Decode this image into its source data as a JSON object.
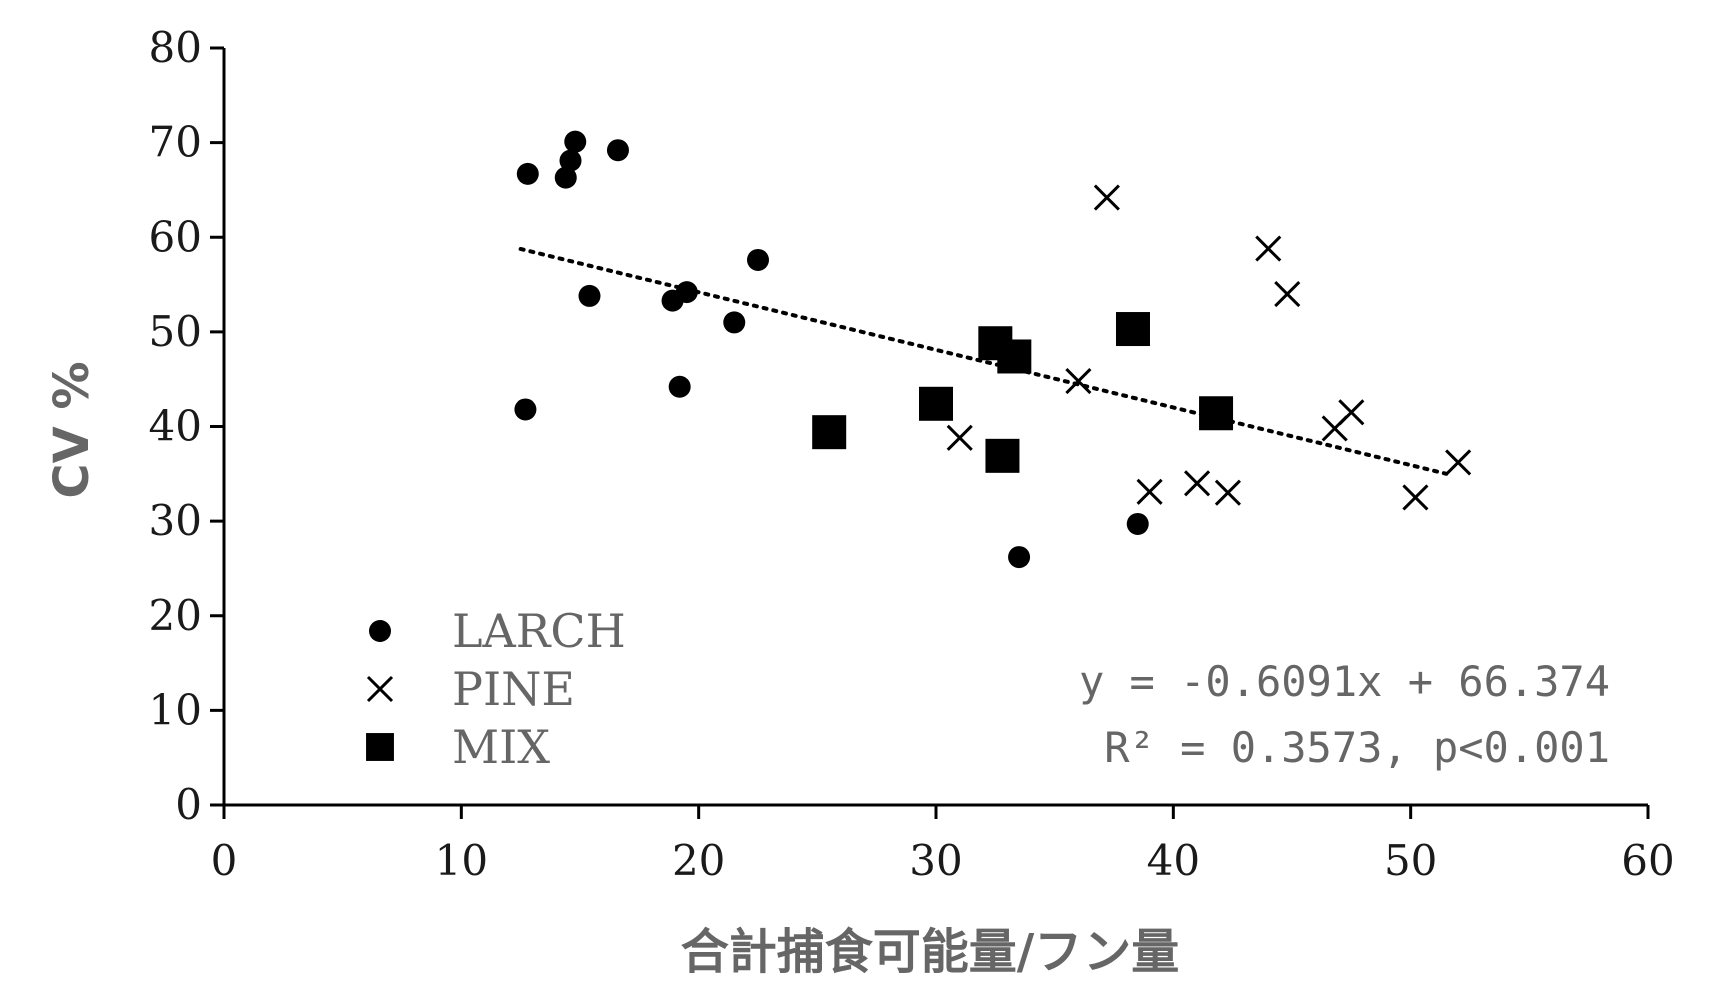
{
  "chart_data": {
    "type": "scatter",
    "xlabel": "合計捕食可能量/フン量",
    "ylabel": "CV %",
    "xlim": [
      0,
      60
    ],
    "ylim": [
      0,
      80
    ],
    "x_ticks": [
      "0",
      "10",
      "20",
      "30",
      "40",
      "50",
      "60"
    ],
    "y_ticks": [
      "0",
      "10",
      "20",
      "30",
      "40",
      "50",
      "60",
      "70",
      "80"
    ],
    "grid": false,
    "legend_position": "bottom-left",
    "series": [
      {
        "name": "LARCH",
        "marker": "circle",
        "color": "#000000",
        "points": [
          [
            12.7,
            41.8
          ],
          [
            12.8,
            66.7
          ],
          [
            14.4,
            66.3
          ],
          [
            14.6,
            68.1
          ],
          [
            14.8,
            70.1
          ],
          [
            15.4,
            53.8
          ],
          [
            16.6,
            69.2
          ],
          [
            18.9,
            53.3
          ],
          [
            19.2,
            44.2
          ],
          [
            19.5,
            54.2
          ],
          [
            21.5,
            51.0
          ],
          [
            22.5,
            57.6
          ],
          [
            33.5,
            26.2
          ],
          [
            38.5,
            29.7
          ]
        ]
      },
      {
        "name": "PINE",
        "marker": "x",
        "color": "#000000",
        "points": [
          [
            31.0,
            38.8
          ],
          [
            36.0,
            44.8
          ],
          [
            37.2,
            64.2
          ],
          [
            39.0,
            33.1
          ],
          [
            41.0,
            34.0
          ],
          [
            42.3,
            33.0
          ],
          [
            44.0,
            58.8
          ],
          [
            44.8,
            54.0
          ],
          [
            46.8,
            39.8
          ],
          [
            47.5,
            41.5
          ],
          [
            50.2,
            32.5
          ],
          [
            52.0,
            36.2
          ]
        ]
      },
      {
        "name": "MIX",
        "marker": "square",
        "color": "#000000",
        "points": [
          [
            25.5,
            39.4
          ],
          [
            30.0,
            42.4
          ],
          [
            32.5,
            48.8
          ],
          [
            32.8,
            36.9
          ],
          [
            33.3,
            47.4
          ],
          [
            38.3,
            50.3
          ],
          [
            41.8,
            41.4
          ]
        ]
      }
    ],
    "trendline": {
      "style": "dotted",
      "slope": -0.6091,
      "intercept": 66.374,
      "x_range": [
        12.5,
        51.5
      ]
    },
    "annotations": {
      "equation": "y = -0.6091x + 66.374",
      "stats": "R² = 0.3573,  p<0.001"
    }
  }
}
